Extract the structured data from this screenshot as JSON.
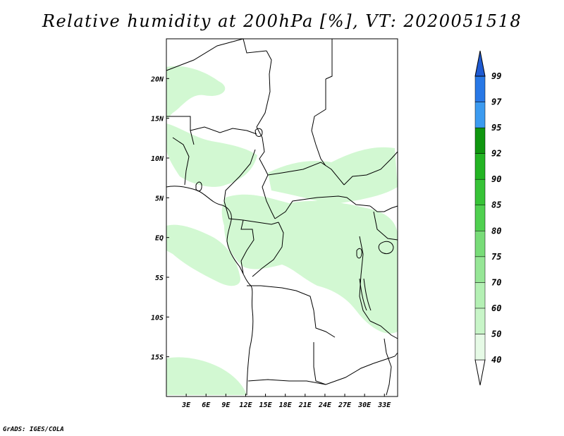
{
  "title": "Relative humidity at 200hPa [%], VT: 2020051518",
  "credit": "GrADS: IGES/COLA",
  "map": {
    "lat_ticks": [
      "20N",
      "15N",
      "10N",
      "5N",
      "EQ",
      "5S",
      "10S",
      "15S"
    ],
    "lon_ticks": [
      "3E",
      "6E",
      "9E",
      "12E",
      "15E",
      "18E",
      "21E",
      "24E",
      "27E",
      "30E",
      "33E"
    ],
    "lon_range": [
      0,
      35
    ],
    "lat_range": [
      -20,
      25
    ]
  },
  "colorbar": {
    "levels": [
      "40",
      "50",
      "60",
      "70",
      "75",
      "80",
      "85",
      "90",
      "92",
      "95",
      "97",
      "99"
    ],
    "colors": [
      "#e6fae6",
      "#c8f5c8",
      "#b4f0b4",
      "#96e696",
      "#78dc78",
      "#50d050",
      "#37c337",
      "#23b423",
      "#0f960f",
      "#3c9bf0",
      "#2878e6",
      "#1e5ad2"
    ]
  },
  "shading_color": "#d2f8d2"
}
